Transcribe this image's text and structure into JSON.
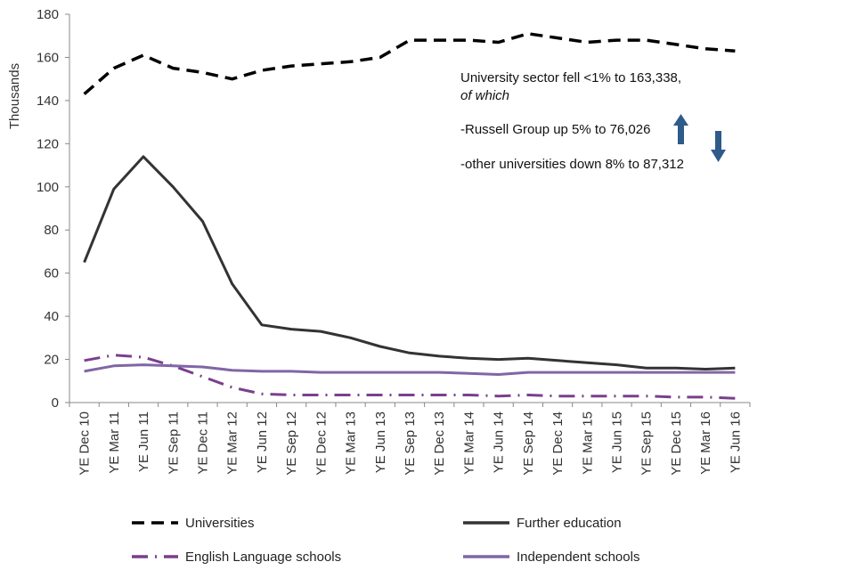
{
  "chart_data": {
    "type": "line",
    "title": "",
    "xlabel": "",
    "ylabel": "Thousands",
    "ylim": [
      0,
      180
    ],
    "yticks": [
      0,
      20,
      40,
      60,
      80,
      100,
      120,
      140,
      160,
      180
    ],
    "grid": false,
    "legend_position": "bottom",
    "categories": [
      "YE Dec 10",
      "YE Mar 11",
      "YE Jun 11",
      "YE Sep 11",
      "YE Dec 11",
      "YE Mar 12",
      "YE Jun 12",
      "YE Sep 12",
      "YE Dec 12",
      "YE Mar 13",
      "YE Jun 13",
      "YE Sep 13",
      "YE Dec 13",
      "YE Mar 14",
      "YE Jun 14",
      "YE Sep 14",
      "YE Dec 14",
      "YE Mar 15",
      "YE Jun 15",
      "YE Sep 15",
      "YE Dec 15",
      "YE Mar 16",
      "YE Jun 16"
    ],
    "series": [
      {
        "name": "Universities",
        "color": "#000000",
        "style": "dash",
        "values": [
          143,
          155,
          161,
          155,
          153,
          150,
          154,
          156,
          157,
          158,
          160,
          168,
          168,
          168,
          167,
          171,
          169,
          167,
          168,
          168,
          166,
          164,
          163
        ]
      },
      {
        "name": "Further education",
        "color": "#333333",
        "style": "solid",
        "values": [
          65,
          99,
          114,
          100,
          84,
          55,
          36,
          34,
          33,
          30,
          26,
          23,
          21.5,
          20.5,
          20,
          20.5,
          19.5,
          18.5,
          17.5,
          16,
          16,
          15.5,
          16
        ]
      },
      {
        "name": "English Language schools",
        "color": "#7a3f8e",
        "style": "dashdot",
        "values": [
          19.5,
          22,
          21,
          17,
          12,
          7,
          4,
          3.5,
          3.5,
          3.5,
          3.5,
          3.5,
          3.5,
          3.5,
          3,
          3.5,
          3,
          3,
          3,
          3,
          2.5,
          2.5,
          2
        ]
      },
      {
        "name": "Independent schools",
        "color": "#8066a6",
        "style": "solid",
        "values": [
          14.5,
          17,
          17.5,
          17,
          16.5,
          15,
          14.5,
          14.5,
          14,
          14,
          14,
          14,
          14,
          13.5,
          13,
          14,
          14,
          14,
          14,
          14,
          14,
          14,
          14
        ]
      }
    ],
    "annotations": {
      "line1": "University sector fell <1% to 163,338,",
      "line2": "of which",
      "line3": "-Russell Group up 5% to 76,026",
      "line4": "-other universities down 8% to 87,312",
      "arrow_up_color": "#2e5b8a",
      "arrow_down_color": "#2e5b8a"
    }
  }
}
